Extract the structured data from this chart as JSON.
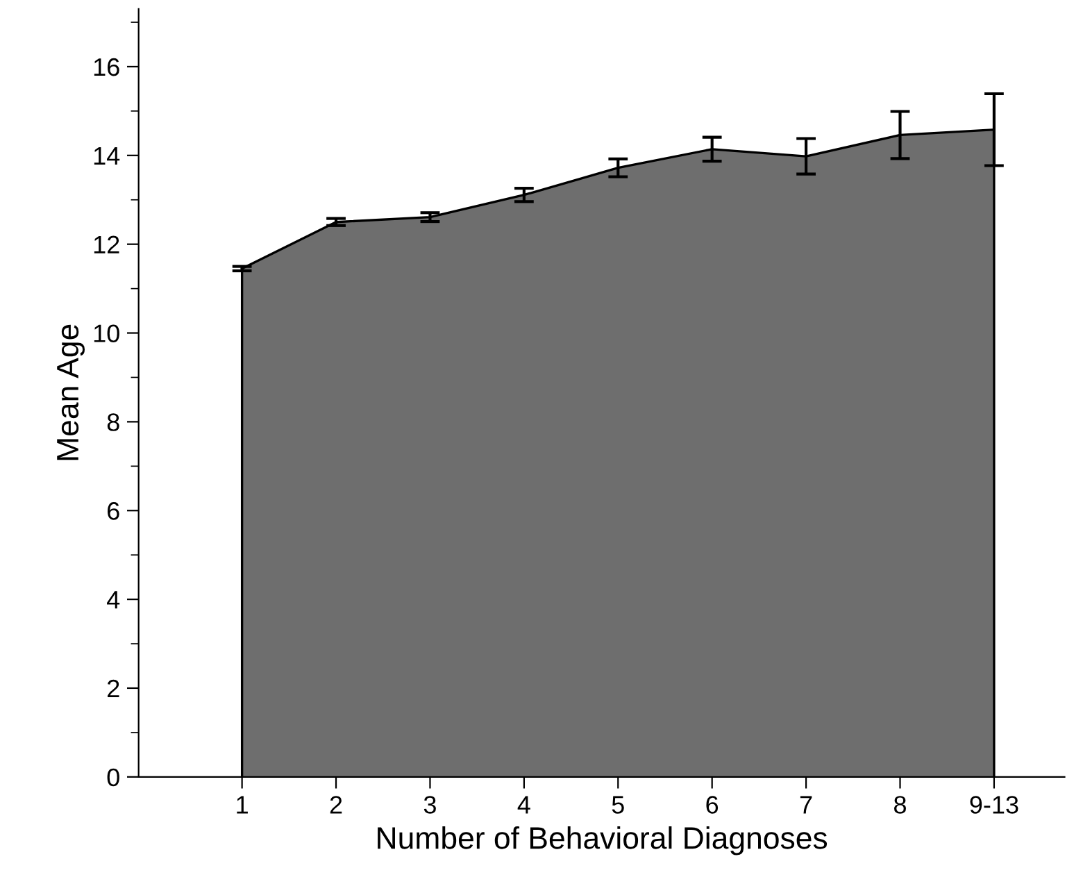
{
  "chart_data": {
    "type": "area",
    "xlabel": "Number of Behavioral Diagnoses",
    "ylabel": "Mean Age",
    "categories": [
      "1",
      "2",
      "3",
      "4",
      "5",
      "6",
      "7",
      "8",
      "9-13"
    ],
    "series": [
      {
        "color": "#6e6e6e",
        "values": [
          11.45,
          12.5,
          12.61,
          13.11,
          13.72,
          14.14,
          13.98,
          14.46,
          14.58
        ],
        "errors": [
          0.05,
          0.08,
          0.1,
          0.15,
          0.2,
          0.27,
          0.4,
          0.53,
          0.81
        ]
      }
    ],
    "ylim": [
      0,
      17.3
    ],
    "yticks": [
      0,
      2,
      4,
      6,
      8,
      10,
      12,
      14,
      16
    ],
    "grid": false,
    "legend": false
  }
}
